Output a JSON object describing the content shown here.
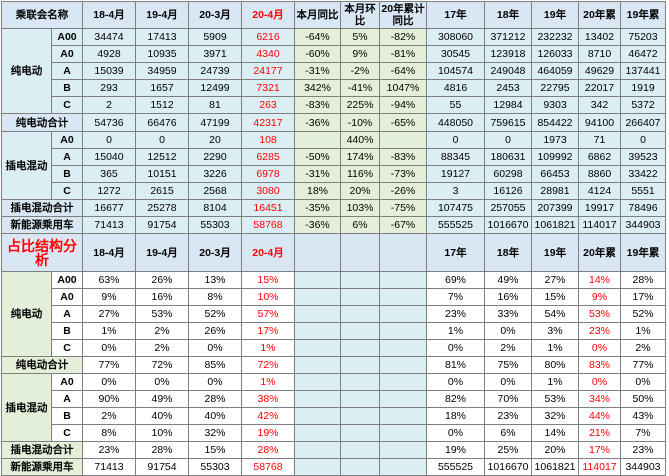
{
  "header": [
    "乘联会名称",
    "18-4月",
    "19-4月",
    "20-3月",
    "20-4月",
    "本月同比",
    "本月环比",
    "20年累计同比",
    "17年",
    "18年",
    "19年",
    "20年累",
    "19年累"
  ],
  "section1": {
    "pure_ev_label": "纯电动",
    "pure_ev_rows": [
      {
        "cls": "A00",
        "v": [
          "34474",
          "17413",
          "5909",
          "6216",
          "-64%",
          "5%",
          "-82%",
          "308060",
          "371212",
          "232232",
          "13402",
          "75203"
        ]
      },
      {
        "cls": "A0",
        "v": [
          "4928",
          "10935",
          "3971",
          "4340",
          "-60%",
          "9%",
          "-81%",
          "30545",
          "123918",
          "126033",
          "8710",
          "46472"
        ]
      },
      {
        "cls": "A",
        "v": [
          "15039",
          "34959",
          "24739",
          "24177",
          "-31%",
          "-2%",
          "-64%",
          "104574",
          "249048",
          "464059",
          "49629",
          "137441"
        ]
      },
      {
        "cls": "B",
        "v": [
          "293",
          "1657",
          "12499",
          "7321",
          "342%",
          "-41%",
          "1047%",
          "4816",
          "2453",
          "22795",
          "22017",
          "1919"
        ]
      },
      {
        "cls": "C",
        "v": [
          "2",
          "1512",
          "81",
          "263",
          "-83%",
          "225%",
          "-94%",
          "55",
          "12984",
          "9303",
          "342",
          "5372"
        ]
      }
    ],
    "pure_ev_total": {
      "label": "纯电动合计",
      "v": [
        "54736",
        "66476",
        "47199",
        "42317",
        "-36%",
        "-10%",
        "-65%",
        "448050",
        "759615",
        "854422",
        "94100",
        "266407"
      ]
    },
    "phev_label": "插电混动",
    "phev_rows": [
      {
        "cls": "A0",
        "v": [
          "0",
          "0",
          "20",
          "108",
          "",
          "440%",
          "",
          "0",
          "0",
          "1973",
          "71",
          "0"
        ]
      },
      {
        "cls": "A",
        "v": [
          "15040",
          "12512",
          "2290",
          "6285",
          "-50%",
          "174%",
          "-83%",
          "88345",
          "180631",
          "109992",
          "6862",
          "39523"
        ]
      },
      {
        "cls": "B",
        "v": [
          "365",
          "10151",
          "3226",
          "6978",
          "-31%",
          "116%",
          "-73%",
          "19127",
          "60298",
          "66453",
          "8860",
          "33422"
        ]
      },
      {
        "cls": "C",
        "v": [
          "1272",
          "2615",
          "2568",
          "3080",
          "18%",
          "20%",
          "-26%",
          "3",
          "16126",
          "28981",
          "4124",
          "5551"
        ]
      }
    ],
    "phev_total": {
      "label": "插电混动合计",
      "v": [
        "16677",
        "25278",
        "8104",
        "16451",
        "-35%",
        "103%",
        "-75%",
        "107475",
        "257055",
        "207399",
        "19917",
        "78496"
      ]
    },
    "nev_total": {
      "label": "新能源乘用车",
      "v": [
        "71413",
        "91754",
        "55303",
        "58768",
        "-36%",
        "6%",
        "-67%",
        "555525",
        "1016670",
        "1061821",
        "114017",
        "344903"
      ]
    }
  },
  "section2": {
    "title": "占比结构分析",
    "header": [
      "18-4月",
      "19-4月",
      "20-3月",
      "20-4月",
      "",
      "",
      "",
      "17年",
      "18年",
      "19年",
      "20年累",
      "19年累"
    ],
    "pure_ev_label": "纯电动",
    "pure_ev_rows": [
      {
        "cls": "A00",
        "v": [
          "63%",
          "26%",
          "13%",
          "15%",
          "",
          "",
          "",
          "69%",
          "49%",
          "27%",
          "14%",
          "28%"
        ]
      },
      {
        "cls": "A0",
        "v": [
          "9%",
          "16%",
          "8%",
          "10%",
          "",
          "",
          "",
          "7%",
          "16%",
          "15%",
          "9%",
          "17%"
        ]
      },
      {
        "cls": "A",
        "v": [
          "27%",
          "53%",
          "52%",
          "57%",
          "",
          "",
          "",
          "23%",
          "33%",
          "54%",
          "53%",
          "52%"
        ]
      },
      {
        "cls": "B",
        "v": [
          "1%",
          "2%",
          "26%",
          "17%",
          "",
          "",
          "",
          "1%",
          "0%",
          "3%",
          "23%",
          "1%"
        ]
      },
      {
        "cls": "C",
        "v": [
          "0%",
          "2%",
          "0%",
          "1%",
          "",
          "",
          "",
          "0%",
          "2%",
          "1%",
          "0%",
          "2%"
        ]
      }
    ],
    "pure_ev_total": {
      "label": "纯电动合计",
      "v": [
        "77%",
        "72%",
        "85%",
        "72%",
        "",
        "",
        "",
        "81%",
        "75%",
        "80%",
        "83%",
        "77%"
      ]
    },
    "phev_label": "插电混动",
    "phev_rows": [
      {
        "cls": "A0",
        "v": [
          "0%",
          "0%",
          "0%",
          "1%",
          "",
          "",
          "",
          "0%",
          "0%",
          "1%",
          "0%",
          "0%"
        ]
      },
      {
        "cls": "A",
        "v": [
          "90%",
          "49%",
          "28%",
          "38%",
          "",
          "",
          "",
          "82%",
          "70%",
          "53%",
          "34%",
          "50%"
        ]
      },
      {
        "cls": "B",
        "v": [
          "2%",
          "40%",
          "40%",
          "42%",
          "",
          "",
          "",
          "18%",
          "23%",
          "32%",
          "44%",
          "43%"
        ]
      },
      {
        "cls": "C",
        "v": [
          "8%",
          "10%",
          "32%",
          "19%",
          "",
          "",
          "",
          "0%",
          "6%",
          "14%",
          "21%",
          "7%"
        ]
      }
    ],
    "phev_total": {
      "label": "插电混动合计",
      "v": [
        "23%",
        "28%",
        "15%",
        "28%",
        "",
        "",
        "",
        "19%",
        "25%",
        "20%",
        "17%",
        "23%"
      ]
    },
    "nev_total": {
      "label": "新能源乘用车",
      "v": [
        "71413",
        "91754",
        "55303",
        "58768",
        "",
        "",
        "",
        "555525",
        "1016670",
        "1061821",
        "114017",
        "344903"
      ]
    }
  }
}
